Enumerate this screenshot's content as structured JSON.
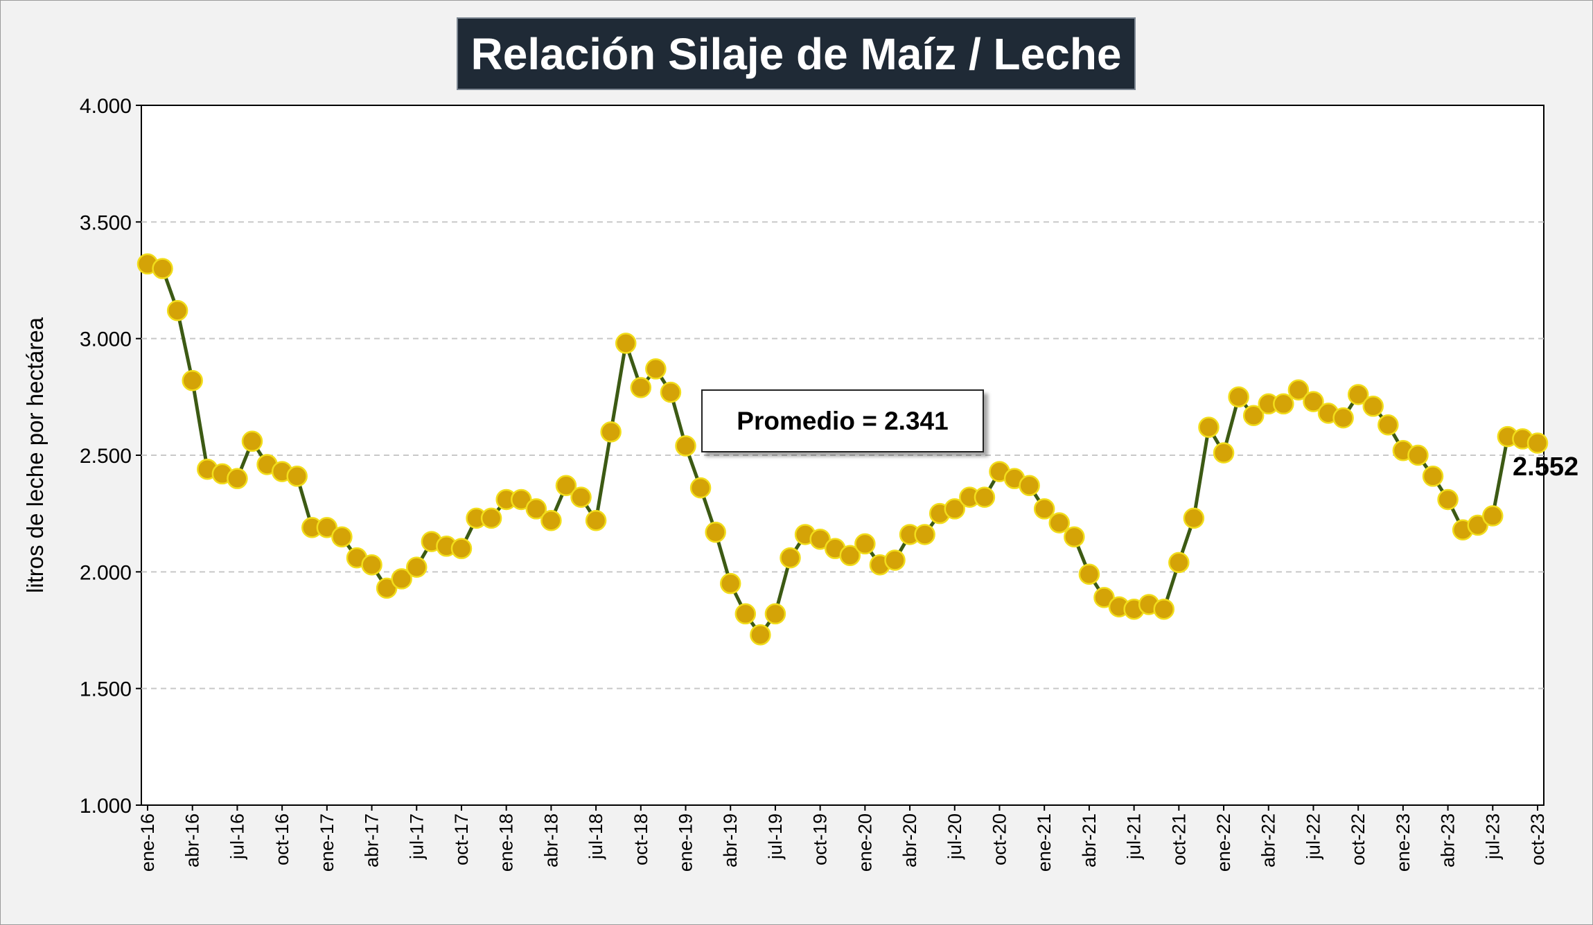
{
  "chart_data": {
    "type": "line",
    "title": "Relación Silaje de Maíz / Leche",
    "ylabel": "litros de leche por hectárea",
    "xlabel": "",
    "ylim": [
      1000,
      4000
    ],
    "y_ticks": [
      "1.000",
      "1.500",
      "2.000",
      "2.500",
      "3.000",
      "3.500",
      "4.000"
    ],
    "y_tick_values": [
      1000,
      1500,
      2000,
      2500,
      3000,
      3500,
      4000
    ],
    "x_tick_labels": [
      "ene-16",
      "abr-16",
      "jul-16",
      "oct-16",
      "ene-17",
      "abr-17",
      "jul-17",
      "oct-17",
      "ene-18",
      "abr-18",
      "jul-18",
      "oct-18",
      "ene-19",
      "abr-19",
      "jul-19",
      "oct-19",
      "ene-20",
      "abr-20",
      "jul-20",
      "oct-20",
      "ene-21",
      "abr-21",
      "jul-21",
      "oct-21",
      "ene-22",
      "abr-22",
      "jul-22",
      "oct-22",
      "ene-23",
      "abr-23",
      "jul-23",
      "oct-23"
    ],
    "grid": "horizontal-dashed",
    "legend": "none",
    "line_color": "#3c5a14",
    "marker_fill": "#d4a307",
    "marker_edge": "#f2dd1b",
    "series": [
      {
        "values": [
          3320,
          3300,
          3120,
          2820,
          2440,
          2420,
          2400,
          2560,
          2460,
          2430,
          2410,
          2190,
          2190,
          2150,
          2060,
          2030,
          1930,
          1970,
          2020,
          2130,
          2110,
          2100,
          2230,
          2230,
          2310,
          2310,
          2270,
          2220,
          2370,
          2320,
          2220,
          2600,
          2980,
          2790,
          2870,
          2770,
          2540,
          2360,
          2170,
          1950,
          1820,
          1730,
          1820,
          2060,
          2160,
          2140,
          2100,
          2070,
          2120,
          2030,
          2050,
          2160,
          2160,
          2250,
          2270,
          2320,
          2320,
          2430,
          2400,
          2370,
          2270,
          2210,
          2150,
          1990,
          1890,
          1850,
          1840,
          1860,
          1840,
          2040,
          2230,
          2620,
          2510,
          2750,
          2670,
          2720,
          2720,
          2780,
          2730,
          2680,
          2660,
          2760,
          2710,
          2630,
          2520,
          2500,
          2410,
          2310,
          2180,
          2200,
          2240,
          2580,
          2570,
          2552
        ]
      }
    ],
    "last_value_label": "2.552",
    "annotation": "Promedio = 2.341"
  }
}
